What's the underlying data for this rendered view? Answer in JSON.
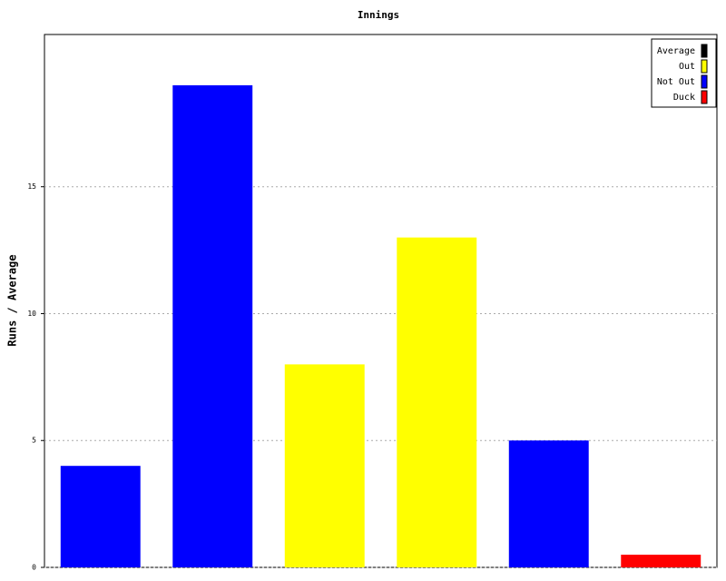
{
  "chart_data": {
    "type": "bar",
    "title": "Innings",
    "y_label": "Runs / Average",
    "categories": [
      null,
      null,
      null,
      null,
      null,
      null
    ],
    "values": [
      4,
      19,
      8,
      13,
      5,
      0.5
    ],
    "colors": [
      "#0000ff",
      "#0000ff",
      "#ffff00",
      "#ffff00",
      "#0000ff",
      "#ff0000"
    ],
    "legend": [
      {
        "name": "Average",
        "color": "#000000"
      },
      {
        "name": "Out",
        "color": "#ffff00"
      },
      {
        "name": "Not Out",
        "color": "#0000ff"
      },
      {
        "name": "Duck",
        "color": "#ff0000"
      }
    ],
    "ylim": [
      0,
      21
    ],
    "yticks": [
      0,
      5,
      10,
      15
    ],
    "grid": true
  }
}
